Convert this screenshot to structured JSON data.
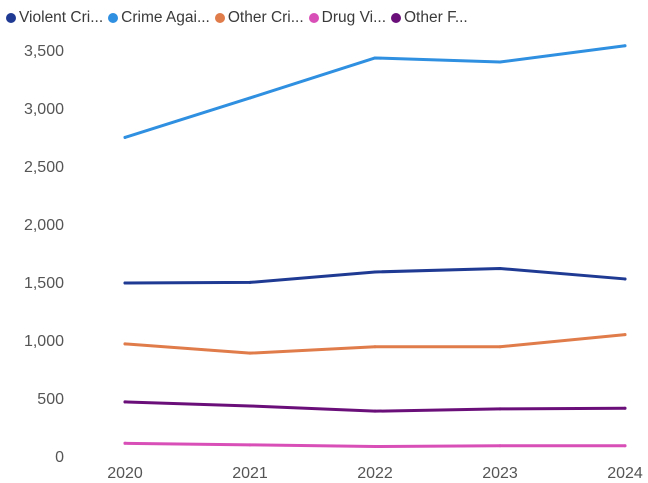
{
  "chart_data": {
    "type": "line",
    "x": [
      "2020",
      "2021",
      "2022",
      "2023",
      "2024"
    ],
    "ylim": [
      0,
      3500
    ],
    "yticks": [
      0,
      500,
      1000,
      1500,
      2000,
      2500,
      3000,
      3500
    ],
    "ytick_labels": [
      "0",
      "500",
      "1,000",
      "1,500",
      "2,000",
      "2,500",
      "3,000",
      "3,500"
    ],
    "grid": false,
    "legend_position": "top-left",
    "series": [
      {
        "name": "Violent Cri...",
        "color": "#1f3a93",
        "values": [
          1500,
          1505,
          1595,
          1625,
          1535
        ]
      },
      {
        "name": "Crime Agai...",
        "color": "#2f8fe0",
        "values": [
          2755,
          3095,
          3440,
          3405,
          3545
        ]
      },
      {
        "name": "Other Cri...",
        "color": "#e07b4a",
        "values": [
          975,
          895,
          950,
          950,
          1055
        ]
      },
      {
        "name": "Drug Vi...",
        "color": "#d94fb8",
        "values": [
          118,
          105,
          90,
          97,
          97
        ]
      },
      {
        "name": "Other F...",
        "color": "#6a0f7a",
        "values": [
          475,
          440,
          395,
          415,
          420
        ]
      }
    ]
  }
}
